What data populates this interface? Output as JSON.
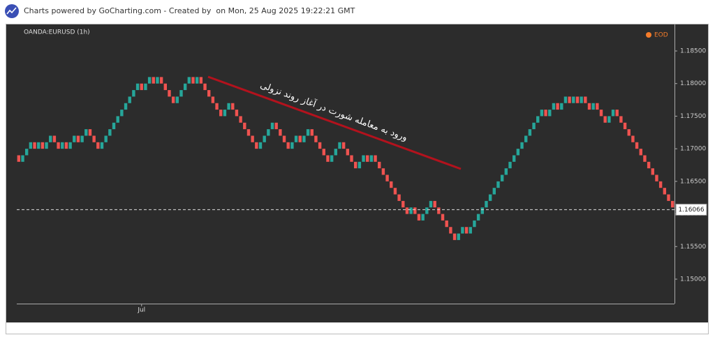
{
  "header": {
    "text": "Charts powered by GoCharting.com - Created by  on Mon, 25 Aug 2025 19:22:21 GMT"
  },
  "chart_data": {
    "type": "renko",
    "title": "OANDA:EURUSD (1h)",
    "legend": "EOD",
    "legend_color": "#f57c2a",
    "up_color": "#26a69a",
    "down_color": "#ef5350",
    "annotation": "ورود به معامله شورت در آغاز روند نزولی",
    "open": [
      1.169,
      1.168,
      1.169,
      1.17,
      1.171,
      1.17,
      1.171,
      1.17,
      1.171,
      1.172,
      1.171,
      1.17,
      1.171,
      1.17,
      1.171,
      1.172,
      1.171,
      1.172,
      1.173,
      1.172,
      1.171,
      1.17,
      1.171,
      1.172,
      1.173,
      1.174,
      1.175,
      1.176,
      1.177,
      1.178,
      1.179,
      1.18,
      1.179,
      1.18,
      1.181,
      1.18,
      1.181,
      1.18,
      1.179,
      1.178,
      1.177,
      1.178,
      1.179,
      1.18,
      1.181,
      1.18,
      1.181,
      1.18,
      1.179,
      1.178,
      1.177,
      1.176,
      1.175,
      1.176,
      1.177,
      1.176,
      1.175,
      1.174,
      1.173,
      1.172,
      1.171,
      1.17,
      1.171,
      1.172,
      1.173,
      1.174,
      1.173,
      1.172,
      1.171,
      1.17,
      1.171,
      1.172,
      1.171,
      1.172,
      1.173,
      1.172,
      1.171,
      1.17,
      1.169,
      1.168,
      1.169,
      1.17,
      1.171,
      1.17,
      1.169,
      1.168,
      1.167,
      1.168,
      1.169,
      1.168,
      1.169,
      1.168,
      1.167,
      1.166,
      1.165,
      1.164,
      1.163,
      1.162,
      1.161,
      1.16,
      1.161,
      1.16,
      1.159,
      1.16,
      1.161,
      1.162,
      1.161,
      1.16,
      1.159,
      1.158,
      1.157,
      1.156,
      1.157,
      1.158,
      1.157,
      1.158,
      1.159,
      1.16,
      1.161,
      1.162,
      1.163,
      1.164,
      1.165,
      1.166,
      1.167,
      1.168,
      1.169,
      1.17,
      1.171,
      1.172,
      1.173,
      1.174,
      1.175,
      1.176,
      1.175,
      1.176,
      1.177,
      1.176,
      1.177,
      1.178,
      1.177,
      1.178,
      1.177,
      1.178,
      1.177,
      1.176,
      1.177,
      1.176,
      1.175,
      1.174,
      1.175,
      1.176,
      1.175,
      1.174,
      1.173,
      1.172,
      1.171,
      1.17,
      1.169,
      1.168,
      1.167,
      1.166,
      1.165,
      1.164,
      1.163,
      1.162
    ],
    "close": [
      1.168,
      1.169,
      1.17,
      1.171,
      1.17,
      1.171,
      1.17,
      1.171,
      1.172,
      1.171,
      1.17,
      1.171,
      1.17,
      1.171,
      1.172,
      1.171,
      1.172,
      1.173,
      1.172,
      1.171,
      1.17,
      1.171,
      1.172,
      1.173,
      1.174,
      1.175,
      1.176,
      1.177,
      1.178,
      1.179,
      1.18,
      1.179,
      1.18,
      1.181,
      1.18,
      1.181,
      1.18,
      1.179,
      1.178,
      1.177,
      1.178,
      1.179,
      1.18,
      1.181,
      1.18,
      1.181,
      1.18,
      1.179,
      1.178,
      1.177,
      1.176,
      1.175,
      1.176,
      1.177,
      1.176,
      1.175,
      1.174,
      1.173,
      1.172,
      1.171,
      1.17,
      1.171,
      1.172,
      1.173,
      1.174,
      1.173,
      1.172,
      1.171,
      1.17,
      1.171,
      1.172,
      1.171,
      1.172,
      1.173,
      1.172,
      1.171,
      1.17,
      1.169,
      1.168,
      1.169,
      1.17,
      1.171,
      1.17,
      1.169,
      1.168,
      1.167,
      1.168,
      1.169,
      1.168,
      1.169,
      1.168,
      1.167,
      1.166,
      1.165,
      1.164,
      1.163,
      1.162,
      1.161,
      1.16,
      1.161,
      1.16,
      1.159,
      1.16,
      1.161,
      1.162,
      1.161,
      1.16,
      1.159,
      1.158,
      1.157,
      1.156,
      1.157,
      1.158,
      1.157,
      1.158,
      1.159,
      1.16,
      1.161,
      1.162,
      1.163,
      1.164,
      1.165,
      1.166,
      1.167,
      1.168,
      1.169,
      1.17,
      1.171,
      1.172,
      1.173,
      1.174,
      1.175,
      1.176,
      1.175,
      1.176,
      1.177,
      1.176,
      1.177,
      1.178,
      1.177,
      1.178,
      1.177,
      1.178,
      1.177,
      1.176,
      1.177,
      1.176,
      1.175,
      1.174,
      1.175,
      1.176,
      1.175,
      1.174,
      1.173,
      1.172,
      1.171,
      1.17,
      1.169,
      1.168,
      1.167,
      1.166,
      1.165,
      1.164,
      1.163,
      1.162,
      1.161
    ],
    "last_price": 1.16066,
    "ylim": [
      1.14625,
      1.18907
    ],
    "yticks": [
      {
        "value": 1.15,
        "label": "1.15000"
      },
      {
        "value": 1.155,
        "label": "1.15500"
      },
      {
        "value": 1.16,
        "label": "1.16000"
      },
      {
        "value": 1.165,
        "label": "1.16500"
      },
      {
        "value": 1.17,
        "label": "1.17000"
      },
      {
        "value": 1.175,
        "label": "1.17500"
      },
      {
        "value": 1.18,
        "label": "1.18000"
      },
      {
        "value": 1.185,
        "label": "1.18500"
      }
    ],
    "xticks": [
      {
        "value": 31,
        "label": "Jul"
      }
    ]
  }
}
